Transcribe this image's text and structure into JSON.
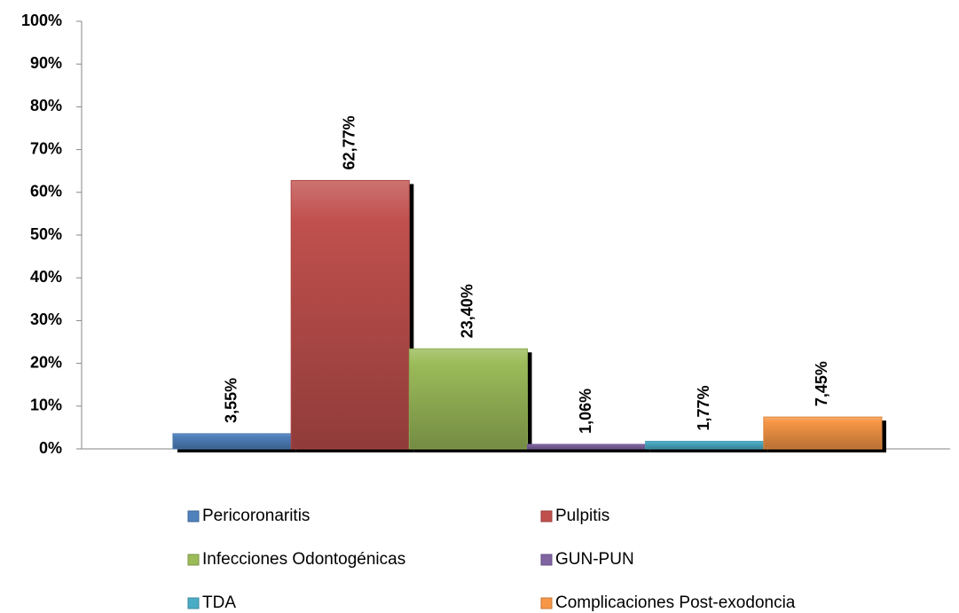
{
  "chart_data": {
    "type": "bar",
    "categories": [
      null
    ],
    "series": [
      {
        "name": "Pericoronaritis",
        "color": "#4f81bd",
        "values": [
          3.55
        ],
        "value_labels": [
          "3,55%"
        ]
      },
      {
        "name": "Pulpitis",
        "color": "#c0504d",
        "values": [
          62.77
        ],
        "value_labels": [
          "62,77%"
        ]
      },
      {
        "name": "Infecciones Odontogénicas",
        "color": "#9bbb59",
        "values": [
          23.4
        ],
        "value_labels": [
          "23,40%"
        ]
      },
      {
        "name": "GUN-PUN",
        "color": "#8064a2",
        "values": [
          1.06
        ],
        "value_labels": [
          "1,06%"
        ]
      },
      {
        "name": "TDA",
        "color": "#4bacc6",
        "values": [
          1.77
        ],
        "value_labels": [
          "1,77%"
        ]
      },
      {
        "name": "Complicaciones Post-exodoncia",
        "color": "#f79646",
        "values": [
          7.45
        ],
        "value_labels": [
          "7,45%"
        ]
      }
    ],
    "ylim": [
      0,
      100
    ],
    "yticks": [
      {
        "value": 0,
        "label": "0%"
      },
      {
        "value": 10,
        "label": "10%"
      },
      {
        "value": 20,
        "label": "20%"
      },
      {
        "value": 30,
        "label": "30%"
      },
      {
        "value": 40,
        "label": "40%"
      },
      {
        "value": 50,
        "label": "50%"
      },
      {
        "value": 60,
        "label": "60%"
      },
      {
        "value": 70,
        "label": "70%"
      },
      {
        "value": 80,
        "label": "80%"
      },
      {
        "value": 90,
        "label": "90%"
      },
      {
        "value": 100,
        "label": "100%"
      }
    ],
    "grid": false
  }
}
